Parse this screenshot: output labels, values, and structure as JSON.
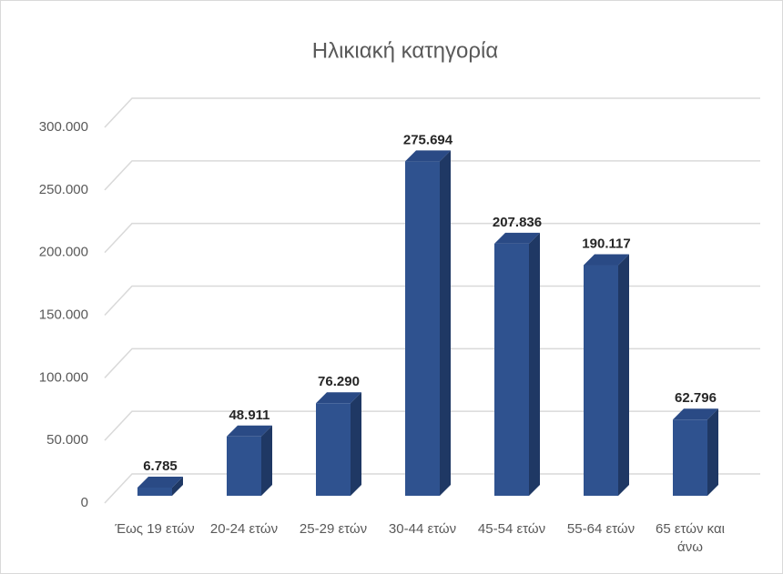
{
  "chart_data": {
    "type": "bar",
    "title": "Ηλικιακή κατηγορία",
    "categories": [
      "Έως 19 ετών",
      "20-24 ετών",
      "25-29 ετών",
      "30-44 ετών",
      "45-54 ετών",
      "55-64 ετών",
      "65 ετών και άνω"
    ],
    "values": [
      6785,
      48911,
      76290,
      275694,
      207836,
      190117,
      62796
    ],
    "value_labels": [
      "6.785",
      "48.911",
      "76.290",
      "275.694",
      "207.836",
      "190.117",
      "62.796"
    ],
    "color": "#2f528f",
    "ylim": [
      0,
      300000
    ],
    "yticks": [
      0,
      {
        "value": 50000,
        "label": "50.000"
      },
      {
        "value": 100000,
        "label": "100.000"
      },
      {
        "value": 150000,
        "label": "150.000"
      },
      {
        "value": 200000,
        "label": "200.000"
      },
      {
        "value": 250000,
        "label": "250.000"
      },
      {
        "value": 300000,
        "label": "300.000"
      }
    ],
    "grid": true
  }
}
